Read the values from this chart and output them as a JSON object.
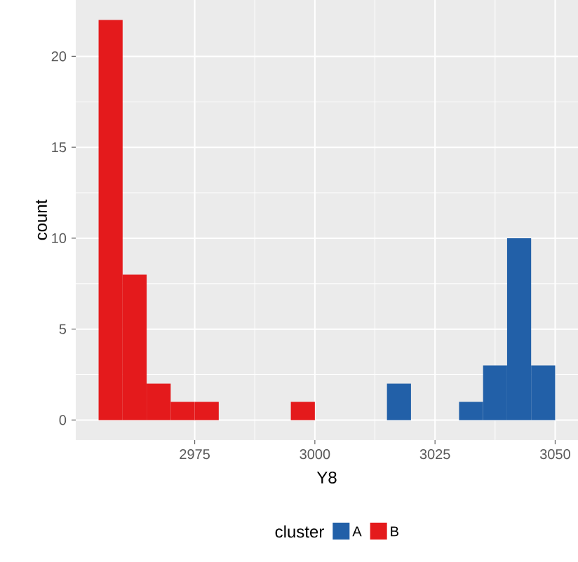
{
  "chart_data": {
    "type": "histogram",
    "xlabel": "Y8",
    "ylabel": "count",
    "legend_title": "cluster",
    "bins": [
      2955,
      2960,
      2965,
      2970,
      2975,
      2980,
      2985,
      2990,
      2995,
      3000,
      3005,
      3010,
      3015,
      3020,
      3025,
      3030,
      3035,
      3040,
      3045,
      3050
    ],
    "series": [
      {
        "name": "A",
        "color": "#2260a8",
        "values": [
          0,
          0,
          0,
          0,
          0,
          0,
          0,
          0,
          0,
          0,
          0,
          0,
          2,
          0,
          0,
          1,
          3,
          10,
          3
        ]
      },
      {
        "name": "B",
        "color": "#e41a1c",
        "values": [
          22,
          8,
          2,
          1,
          1,
          0,
          0,
          0,
          1,
          0,
          0,
          0,
          0,
          0,
          0,
          0,
          0,
          0,
          0
        ]
      }
    ],
    "xlim": [
      2950.25,
      3054.75
    ],
    "ylim": [
      -1.1,
      23.1
    ],
    "xticks": [
      2975,
      3000,
      3025,
      3050
    ],
    "yticks": [
      0,
      5,
      10,
      15,
      20
    ],
    "grid": true,
    "legend": "bottom"
  }
}
